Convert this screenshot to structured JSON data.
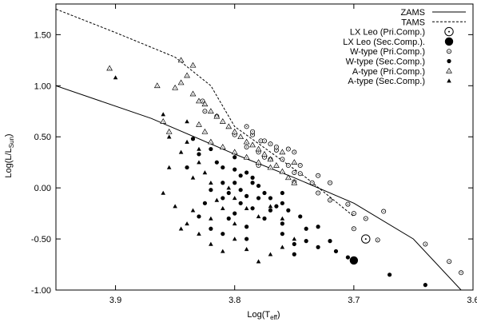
{
  "chart_data": {
    "type": "scatter",
    "xlabel": "Log(T_eff)",
    "ylabel": "Log(L/L_Sun)",
    "xlim": [
      3.95,
      3.6
    ],
    "ylim": [
      -1.0,
      1.8
    ],
    "x_reversed": true,
    "x_ticks": [
      {
        "value": 3.9,
        "label": "3.9"
      },
      {
        "value": 3.8,
        "label": "3.8"
      },
      {
        "value": 3.7,
        "label": "3.7"
      },
      {
        "value": 3.6,
        "label": "3.6"
      }
    ],
    "y_ticks": [
      {
        "value": 1.5,
        "label": "1.50"
      },
      {
        "value": 1.0,
        "label": "1.00"
      },
      {
        "value": 0.5,
        "label": "0.50"
      },
      {
        "value": 0.0,
        "label": "0.00"
      },
      {
        "value": -0.5,
        "label": "-0.50"
      },
      {
        "value": -1.0,
        "label": "-1.00"
      }
    ],
    "grid": false,
    "legend_position": "top-right",
    "lines": [
      {
        "name": "ZAMS",
        "style": "solid",
        "points": [
          [
            3.95,
            1.0
          ],
          [
            3.87,
            0.68
          ],
          [
            3.8,
            0.33
          ],
          [
            3.75,
            0.1
          ],
          [
            3.7,
            -0.15
          ],
          [
            3.65,
            -0.5
          ],
          [
            3.61,
            -1.0
          ]
        ]
      },
      {
        "name": "TAMS",
        "style": "dashed",
        "points": [
          [
            3.95,
            1.75
          ],
          [
            3.9,
            1.52
          ],
          [
            3.85,
            1.28
          ],
          [
            3.82,
            1.0
          ],
          [
            3.8,
            0.6
          ],
          [
            3.77,
            0.35
          ],
          [
            3.74,
            0.1
          ],
          [
            3.7,
            -0.28
          ]
        ]
      }
    ],
    "series": [
      {
        "name": "LX Leo (Pri.Comp.)",
        "marker": "circle-dot-large",
        "points": [
          [
            3.69,
            -0.5
          ]
        ]
      },
      {
        "name": "LX Leo (Sec.Comp.).",
        "marker": "filled-circle-large",
        "points": [
          [
            3.7,
            -0.71
          ]
        ]
      },
      {
        "name": "W-type (Pri.Comp.)",
        "marker": "circle-dot",
        "points": [
          [
            3.827,
            0.85
          ],
          [
            3.825,
            0.75
          ],
          [
            3.815,
            0.7
          ],
          [
            3.79,
            0.6
          ],
          [
            3.785,
            0.52
          ],
          [
            3.778,
            0.46
          ],
          [
            3.77,
            0.43
          ],
          [
            3.765,
            0.37
          ],
          [
            3.755,
            0.38
          ],
          [
            3.75,
            0.35
          ],
          [
            3.745,
            0.22
          ],
          [
            3.75,
            0.15
          ],
          [
            3.73,
            0.12
          ],
          [
            3.72,
            0.05
          ],
          [
            3.75,
            0.06
          ],
          [
            3.73,
            -0.05
          ],
          [
            3.72,
            -0.12
          ],
          [
            3.705,
            -0.16
          ],
          [
            3.7,
            -0.25
          ],
          [
            3.69,
            -0.3
          ],
          [
            3.7,
            -0.4
          ],
          [
            3.675,
            -0.23
          ],
          [
            3.68,
            -0.51
          ],
          [
            3.64,
            -0.55
          ],
          [
            3.62,
            -0.72
          ],
          [
            3.61,
            -0.83
          ],
          [
            3.78,
            0.35
          ],
          [
            3.77,
            0.28
          ],
          [
            3.76,
            0.28
          ],
          [
            3.785,
            0.55
          ],
          [
            3.775,
            0.46
          ],
          [
            3.765,
            0.4
          ],
          [
            3.775,
            0.3
          ],
          [
            3.755,
            0.22
          ],
          [
            3.745,
            0.14
          ],
          [
            3.735,
            0.05
          ],
          [
            3.8,
            0.52
          ],
          [
            3.79,
            0.4
          ],
          [
            3.78,
            0.22
          ]
        ]
      },
      {
        "name": "W-type (Sec.Comp.)",
        "marker": "filled-circle",
        "points": [
          [
            3.835,
            0.48
          ],
          [
            3.83,
            0.33
          ],
          [
            3.82,
            0.38
          ],
          [
            3.815,
            0.25
          ],
          [
            3.81,
            0.2
          ],
          [
            3.8,
            0.3
          ],
          [
            3.79,
            0.15
          ],
          [
            3.785,
            0.05
          ],
          [
            3.795,
            -0.02
          ],
          [
            3.78,
            0.02
          ],
          [
            3.775,
            -0.05
          ],
          [
            3.77,
            -0.1
          ],
          [
            3.76,
            -0.15
          ],
          [
            3.755,
            -0.22
          ],
          [
            3.745,
            -0.28
          ],
          [
            3.74,
            -0.4
          ],
          [
            3.73,
            -0.38
          ],
          [
            3.72,
            -0.52
          ],
          [
            3.715,
            -0.62
          ],
          [
            3.705,
            -0.68
          ],
          [
            3.67,
            -0.85
          ],
          [
            3.64,
            -0.95
          ],
          [
            3.8,
            0.05
          ],
          [
            3.805,
            -0.05
          ],
          [
            3.81,
            -0.1
          ],
          [
            3.79,
            -0.08
          ],
          [
            3.8,
            0.18
          ],
          [
            3.81,
            0.05
          ],
          [
            3.82,
            -0.02
          ],
          [
            3.84,
            0.2
          ],
          [
            3.825,
            -0.15
          ],
          [
            3.83,
            -0.28
          ],
          [
            3.8,
            -0.25
          ],
          [
            3.77,
            -0.22
          ],
          [
            3.76,
            -0.35
          ],
          [
            3.75,
            -0.55
          ],
          [
            3.79,
            -0.38
          ],
          [
            3.81,
            -0.45
          ],
          [
            3.82,
            -0.4
          ],
          [
            3.79,
            -0.5
          ],
          [
            3.76,
            -0.45
          ],
          [
            3.74,
            -0.52
          ],
          [
            3.75,
            -0.65
          ],
          [
            3.73,
            -0.58
          ],
          [
            3.78,
            -0.1
          ],
          [
            3.76,
            -0.05
          ],
          [
            3.785,
            0.1
          ],
          [
            3.795,
            0.12
          ],
          [
            3.775,
            -0.3
          ],
          [
            3.805,
            -0.3
          ],
          [
            3.785,
            -0.2
          ],
          [
            3.795,
            -0.15
          ],
          [
            3.765,
            -0.18
          ]
        ]
      },
      {
        "name": "A-type (Pri.Comp.)",
        "marker": "triangle-dot",
        "points": [
          [
            3.905,
            1.17
          ],
          [
            3.845,
            1.25
          ],
          [
            3.835,
            1.2
          ],
          [
            3.84,
            1.1
          ],
          [
            3.845,
            1.03
          ],
          [
            3.85,
            0.98
          ],
          [
            3.835,
            0.92
          ],
          [
            3.83,
            0.85
          ],
          [
            3.825,
            0.82
          ],
          [
            3.82,
            0.75
          ],
          [
            3.815,
            0.7
          ],
          [
            3.81,
            0.65
          ],
          [
            3.805,
            0.6
          ],
          [
            3.8,
            0.55
          ],
          [
            3.795,
            0.5
          ],
          [
            3.79,
            0.45
          ],
          [
            3.785,
            0.42
          ],
          [
            3.78,
            0.38
          ],
          [
            3.775,
            0.33
          ],
          [
            3.77,
            0.28
          ],
          [
            3.765,
            0.22
          ],
          [
            3.76,
            0.16
          ],
          [
            3.755,
            0.1
          ],
          [
            3.75,
            0.05
          ],
          [
            3.865,
            1.0
          ],
          [
            3.86,
            0.65
          ],
          [
            3.855,
            0.55
          ],
          [
            3.83,
            0.62
          ],
          [
            3.825,
            0.55
          ],
          [
            3.82,
            0.45
          ],
          [
            3.81,
            0.4
          ],
          [
            3.8,
            0.35
          ],
          [
            3.79,
            0.3
          ],
          [
            3.78,
            0.25
          ],
          [
            3.77,
            0.2
          ],
          [
            3.76,
            0.35
          ],
          [
            3.75,
            0.25
          ]
        ]
      },
      {
        "name": "A-type (Sec.Comp.)",
        "marker": "filled-triangle",
        "points": [
          [
            3.9,
            1.08
          ],
          [
            3.86,
            0.72
          ],
          [
            3.855,
            0.5
          ],
          [
            3.84,
            0.65
          ],
          [
            3.845,
            0.35
          ],
          [
            3.84,
            0.45
          ],
          [
            3.83,
            0.38
          ],
          [
            3.835,
            0.1
          ],
          [
            3.82,
            0.05
          ],
          [
            3.815,
            -0.12
          ],
          [
            3.805,
            0.0
          ],
          [
            3.8,
            -0.1
          ],
          [
            3.79,
            -0.2
          ],
          [
            3.78,
            -0.28
          ],
          [
            3.77,
            -0.18
          ],
          [
            3.76,
            -0.3
          ],
          [
            3.85,
            -0.18
          ],
          [
            3.84,
            -0.35
          ],
          [
            3.83,
            -0.45
          ],
          [
            3.82,
            -0.55
          ],
          [
            3.81,
            -0.62
          ],
          [
            3.8,
            -0.5
          ],
          [
            3.79,
            -0.6
          ],
          [
            3.78,
            -0.72
          ],
          [
            3.77,
            -0.65
          ],
          [
            3.76,
            -0.58
          ],
          [
            3.75,
            -0.5
          ],
          [
            3.82,
            -0.3
          ],
          [
            3.835,
            -0.22
          ],
          [
            3.845,
            -0.4
          ],
          [
            3.855,
            0.2
          ],
          [
            3.86,
            -0.05
          ],
          [
            3.83,
            0.25
          ],
          [
            3.825,
            0.15
          ],
          [
            3.81,
            -0.2
          ],
          [
            3.8,
            -0.35
          ]
        ]
      },
      {
        "name": "ZAMS",
        "marker": "solid-line",
        "points": []
      },
      {
        "name": "TAMS",
        "marker": "dashed-line",
        "points": []
      }
    ],
    "legend_order": [
      "ZAMS",
      "TAMS",
      "LX Leo (Pri.Comp.)",
      "LX Leo (Sec.Comp.).",
      "W-type (Pri.Comp.)",
      "W-type (Sec.Comp.)",
      "A-type (Pri.Comp.)",
      "A-type (Sec.Comp.)"
    ]
  },
  "axes": {
    "xlabel_text": "Log(T",
    "xlabel_sub": "eff",
    "xlabel_close": ")",
    "ylabel_text": "Log(L/L",
    "ylabel_sub": "Sun",
    "ylabel_close": ")"
  }
}
